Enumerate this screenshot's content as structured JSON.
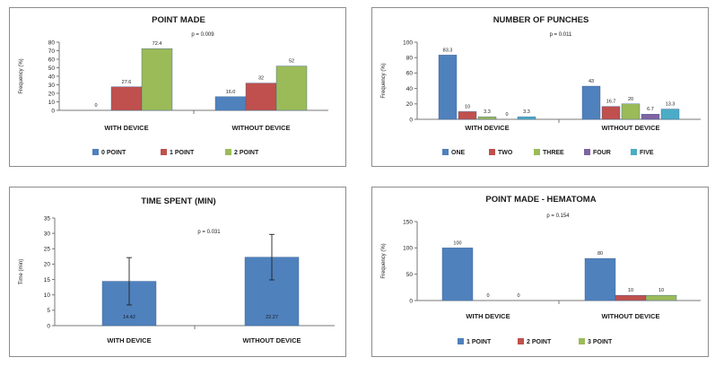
{
  "chart_data": [
    {
      "id": "points",
      "type": "bar",
      "title": "POINT MADE",
      "ylabel": "Frequency (%)",
      "annotation": "p = 0.009",
      "ylim": [
        0,
        80
      ],
      "yticks": [
        0,
        10,
        20,
        30,
        40,
        50,
        60,
        70,
        80
      ],
      "legend_position": "bottom",
      "categories": [
        "WITH DEVICE",
        "WITHOUT DEVICE"
      ],
      "series": [
        {
          "name": "0 POINT",
          "color": "#4f81bd",
          "values": [
            0,
            16.0
          ],
          "labels": [
            "0",
            "16.0"
          ]
        },
        {
          "name": "1 POINT",
          "color": "#c0504d",
          "values": [
            27.6,
            32
          ],
          "labels": [
            "27.6",
            "32"
          ]
        },
        {
          "name": "2 POINT",
          "color": "#9bbb59",
          "values": [
            72.4,
            52
          ],
          "labels": [
            "72.4",
            "52"
          ]
        }
      ]
    },
    {
      "id": "punches",
      "type": "bar",
      "title": "NUMBER OF PUNCHES",
      "ylabel": "Frequency (%)",
      "annotation": "p = 0.011",
      "ylim": [
        0,
        100
      ],
      "yticks": [
        0,
        20,
        40,
        60,
        80,
        100
      ],
      "legend_position": "bottom",
      "categories": [
        "WITH DEVICE",
        "WITHOUT DEVICE"
      ],
      "series": [
        {
          "name": "ONE",
          "color": "#4f81bd",
          "values": [
            83.3,
            43
          ],
          "labels": [
            "83.3",
            "43"
          ]
        },
        {
          "name": "TWO",
          "color": "#c0504d",
          "values": [
            10,
            16.7
          ],
          "labels": [
            "10",
            "16.7"
          ]
        },
        {
          "name": "THREE",
          "color": "#9bbb59",
          "values": [
            3.3,
            20
          ],
          "labels": [
            "3.3",
            "20"
          ]
        },
        {
          "name": "FOUR",
          "color": "#8064a2",
          "values": [
            0,
            6.7
          ],
          "labels": [
            "0",
            "6.7"
          ]
        },
        {
          "name": "FIVE",
          "color": "#4bacc6",
          "values": [
            3.3,
            13.3
          ],
          "labels": [
            "3.3",
            "13.3"
          ]
        }
      ]
    },
    {
      "id": "time",
      "type": "bar",
      "title": "TIME SPENT (MIN)",
      "ylabel": "Time (min)",
      "annotation": "p = 0.031",
      "ylim": [
        0,
        35
      ],
      "yticks": [
        0,
        5,
        10,
        15,
        20,
        25,
        30,
        35
      ],
      "categories": [
        "WITH DEVICE",
        "WITHOUT DEVICE"
      ],
      "series": [
        {
          "name": "",
          "color": "#4f81bd",
          "values": [
            14.42,
            22.27
          ],
          "labels": [
            "14.42",
            "22.27"
          ],
          "error": [
            7.7,
            7.4
          ]
        }
      ]
    },
    {
      "id": "hematoma",
      "type": "bar",
      "title": "POINT MADE - HEMATOMA",
      "ylabel": "Frequency (%)",
      "annotation": "p = 0.154",
      "ylim": [
        0,
        150
      ],
      "yticks": [
        0,
        50,
        100,
        150
      ],
      "legend_position": "bottom",
      "categories": [
        "WITH DEVICE",
        "WITHOUT DEVICE"
      ],
      "series": [
        {
          "name": "1 POINT",
          "color": "#4f81bd",
          "values": [
            100,
            80
          ],
          "labels": [
            "100",
            "80"
          ]
        },
        {
          "name": "2 POINT",
          "color": "#c0504d",
          "values": [
            0,
            10
          ],
          "labels": [
            "0",
            "10"
          ]
        },
        {
          "name": "3 POINT",
          "color": "#9bbb59",
          "values": [
            0,
            10
          ],
          "labels": [
            "0",
            "10"
          ]
        }
      ]
    }
  ]
}
